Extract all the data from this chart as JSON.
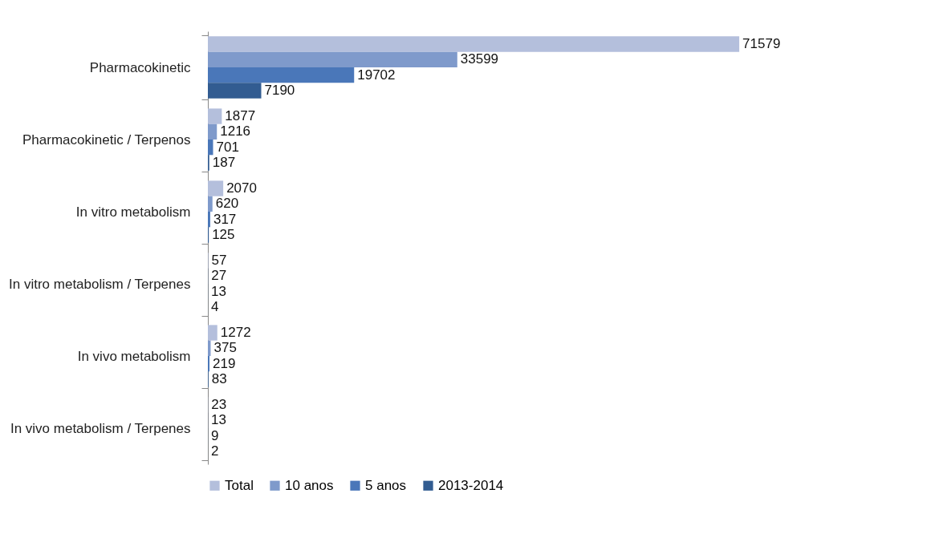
{
  "chart_data": {
    "type": "bar",
    "orientation": "horizontal",
    "categories": [
      "Pharmacokinetic",
      "Pharmacokinetic / Terpenos",
      "In vitro metabolism",
      "In vitro metabolism / Terpenes",
      "In vivo metabolism",
      "In vivo metabolism / Terpenes"
    ],
    "series": [
      {
        "name": "Total",
        "color": "#b4bfdc",
        "values": [
          71579,
          1877,
          2070,
          57,
          1272,
          23
        ]
      },
      {
        "name": "10 anos",
        "color": "#7f9acb",
        "values": [
          33599,
          1216,
          620,
          27,
          375,
          13
        ]
      },
      {
        "name": "5 anos",
        "color": "#4a77b9",
        "values": [
          19702,
          701,
          317,
          13,
          219,
          9
        ]
      },
      {
        "name": "2013-2014",
        "color": "#325c91",
        "values": [
          7190,
          187,
          125,
          4,
          83,
          2
        ]
      }
    ],
    "data_labels": true,
    "legend": "bottom",
    "grid": false
  }
}
